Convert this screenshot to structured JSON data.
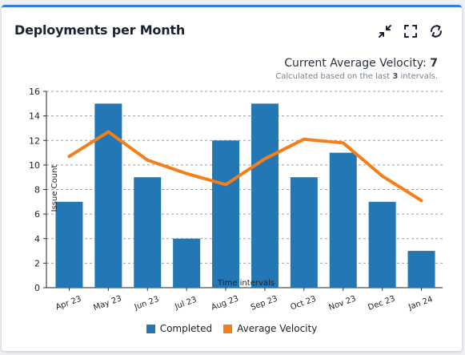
{
  "card": {
    "title": "Deployments per Month",
    "tools": [
      {
        "name": "collapse-icon"
      },
      {
        "name": "fullscreen-icon"
      },
      {
        "name": "refresh-icon"
      }
    ]
  },
  "velocity": {
    "label": "Current Average Velocity:",
    "value": "7",
    "sub_prefix": "Calculated based on the last",
    "sub_count": "3",
    "sub_suffix": "intervals."
  },
  "colors": {
    "accent_border": "#2f7fe0",
    "completed": "#2277b4",
    "average": "#f47f1a"
  },
  "chart_data": {
    "type": "bar",
    "categories": [
      "Apr 23",
      "May 23",
      "Jun 23",
      "Jul 23",
      "Aug 23",
      "Sep 23",
      "Oct 23",
      "Nov 23",
      "Dec 23",
      "Jan 24"
    ],
    "series": [
      {
        "name": "Completed",
        "type": "bar",
        "values": [
          7,
          15,
          9,
          4,
          12,
          15,
          9,
          11,
          7,
          3
        ]
      },
      {
        "name": "Average Velocity",
        "type": "line",
        "values": [
          10.7,
          12.7,
          10.4,
          9.3,
          8.4,
          10.5,
          12.1,
          11.8,
          9.1,
          7.1
        ]
      }
    ],
    "xlabel": "Time intervals",
    "ylabel": "Issue Count",
    "ylim": [
      0,
      16
    ],
    "yticks": [
      0,
      2,
      4,
      6,
      8,
      10,
      12,
      14,
      16
    ],
    "grid": true,
    "legend": "bottom-center"
  }
}
